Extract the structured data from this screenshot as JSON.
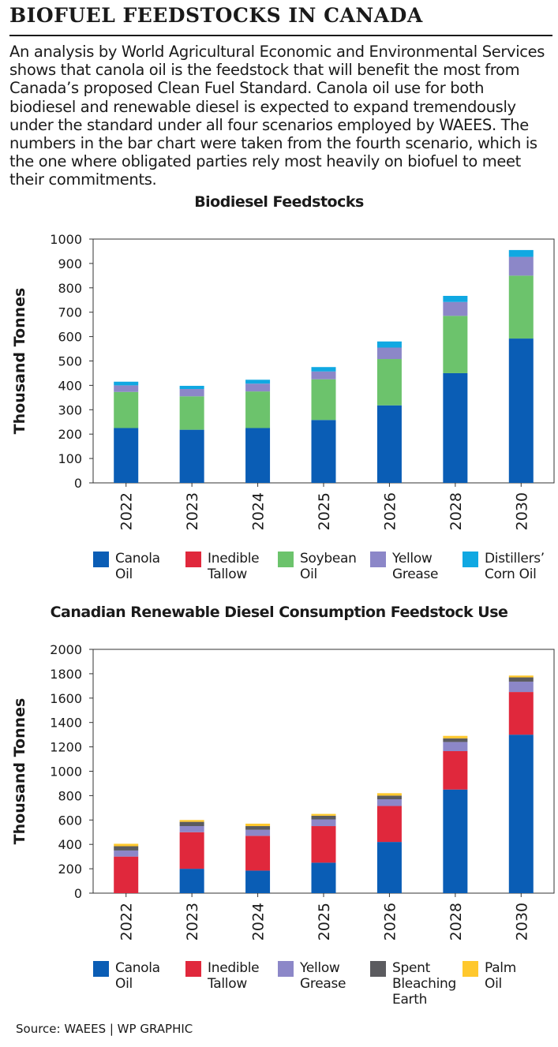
{
  "headline": "BIOFUEL FEEDSTOCKS IN CANADA",
  "intro": "An analysis by World Agricultural Economic and Environmental Services shows that canola oil is the feedstock that will benefit the most from Canada’s proposed Clean Fuel Standard. Canola oil use for both biodiesel and renewable diesel is expected to expand tremendously under the standard under all four scenarios employed by WAEES. The numbers in the bar chart were taken from the fourth scenario, which is the one where obligated parties rely most heavily on biofuel to meet their commitments.",
  "source": "Source: WAEES | WP GRAPHIC",
  "chart_data": [
    {
      "type": "bar",
      "stacked": true,
      "title": "Biodiesel Feedstocks",
      "ylabel": "Thousand Tonnes",
      "xlabel": "",
      "categories": [
        "2022",
        "2023",
        "2024",
        "2025",
        "2026",
        "2028",
        "2030"
      ],
      "ylim": [
        0,
        1000
      ],
      "yticks": [
        0,
        100,
        200,
        300,
        400,
        500,
        600,
        700,
        800,
        900,
        1000
      ],
      "grid": false,
      "legend_position": "bottom",
      "series": [
        {
          "name": "Canola\nOil",
          "color": "#0a5db5",
          "values": [
            225,
            218,
            225,
            258,
            318,
            450,
            592
          ]
        },
        {
          "name": "Inedible\nTallow",
          "color": "#e0283c",
          "values": [
            0,
            0,
            0,
            0,
            0,
            0,
            0
          ]
        },
        {
          "name": "Soybean\nOil",
          "color": "#6cc36c",
          "values": [
            148,
            137,
            150,
            167,
            190,
            235,
            258
          ]
        },
        {
          "name": "Yellow\nGrease",
          "color": "#8c87c8",
          "values": [
            27,
            30,
            32,
            32,
            47,
            57,
            77
          ]
        },
        {
          "name": "Distillers’\nCorn Oil",
          "color": "#10a8e2",
          "values": [
            15,
            13,
            16,
            18,
            25,
            25,
            28
          ]
        }
      ]
    },
    {
      "type": "bar",
      "stacked": true,
      "title": "Canadian Renewable Diesel Consumption Feedstock Use",
      "ylabel": "Thousand Tonnes",
      "xlabel": "",
      "categories": [
        "2022",
        "2023",
        "2024",
        "2025",
        "2026",
        "2028",
        "2030"
      ],
      "ylim": [
        0,
        2000
      ],
      "yticks": [
        0,
        200,
        400,
        600,
        800,
        1000,
        1200,
        1400,
        1600,
        1800,
        2000
      ],
      "grid": false,
      "legend_position": "bottom",
      "series": [
        {
          "name": "Canola\nOil",
          "color": "#0a5db5",
          "values": [
            0,
            200,
            185,
            250,
            420,
            850,
            1300
          ]
        },
        {
          "name": "Inedible\nTallow",
          "color": "#e0283c",
          "values": [
            300,
            300,
            285,
            300,
            295,
            315,
            350
          ]
        },
        {
          "name": "Yellow\nGrease",
          "color": "#8c87c8",
          "values": [
            50,
            50,
            50,
            55,
            55,
            75,
            85
          ]
        },
        {
          "name": "Spent\nBleaching\nEarth",
          "color": "#5b5b5f",
          "values": [
            35,
            35,
            30,
            30,
            30,
            30,
            35
          ]
        },
        {
          "name": "Palm\nOil",
          "color": "#ffc82d",
          "values": [
            20,
            15,
            20,
            15,
            20,
            20,
            15
          ]
        }
      ]
    }
  ]
}
